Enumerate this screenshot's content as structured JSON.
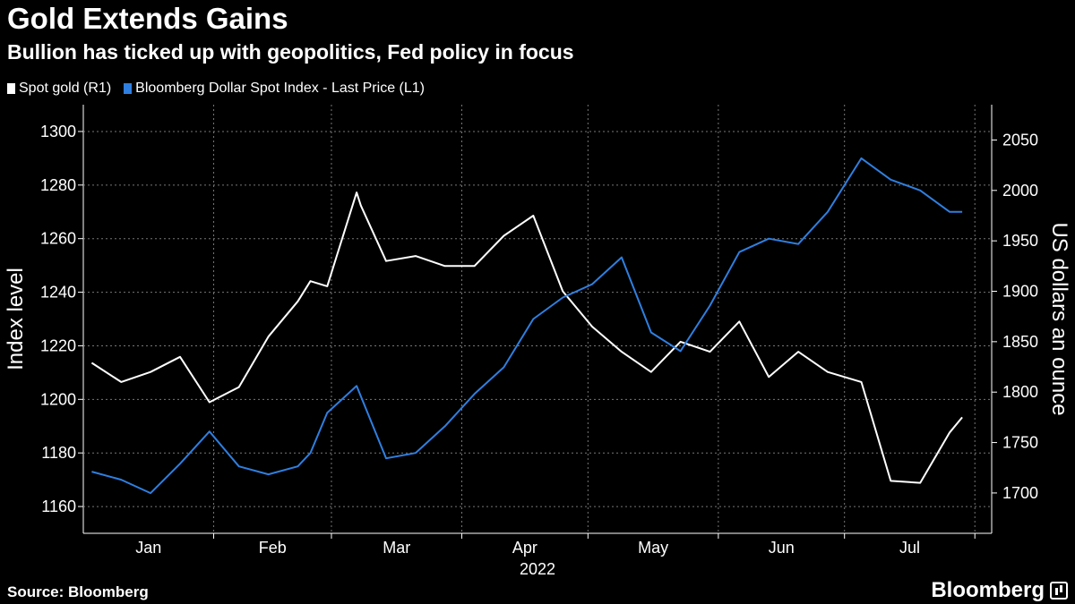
{
  "header": {
    "title": "Gold Extends Gains",
    "subtitle": "Bullion has ticked up with geopolitics, Fed policy in focus"
  },
  "footer": {
    "source": "Source: Bloomberg",
    "logo": "Bloomberg"
  },
  "colors": {
    "gold": "#ffffff",
    "dollar": "#2f7fe0",
    "grid": "#777777",
    "background": "#000000"
  },
  "chart_data": {
    "type": "line",
    "title": "Gold Extends Gains",
    "subtitle": "Bullion has ticked up with geopolitics, Fed policy in focus",
    "x_months": [
      "Jan",
      "Feb",
      "Mar",
      "Apr",
      "May",
      "Jun",
      "Jul"
    ],
    "x_year": "2022",
    "legend_position": "top-left",
    "grid": true,
    "y_left": {
      "label": "Index level",
      "range": [
        1150,
        1310
      ],
      "ticks": [
        "1160",
        "1180",
        "1200",
        "1220",
        "1240",
        "1260",
        "1280",
        "1300"
      ]
    },
    "y_right": {
      "label": "US dollars an ounce",
      "range": [
        1660,
        2085
      ],
      "ticks": [
        "1700",
        "1750",
        "1800",
        "1850",
        "1900",
        "1950",
        "2000",
        "2050"
      ]
    },
    "series": [
      {
        "name": "Spot gold (R1)",
        "axis": "right",
        "x": [
          "2022-01-03",
          "2022-01-10",
          "2022-01-17",
          "2022-01-24",
          "2022-01-31",
          "2022-02-07",
          "2022-02-14",
          "2022-02-21",
          "2022-02-24",
          "2022-02-28",
          "2022-03-07",
          "2022-03-08",
          "2022-03-14",
          "2022-03-21",
          "2022-03-28",
          "2022-04-04",
          "2022-04-11",
          "2022-04-18",
          "2022-04-25",
          "2022-05-02",
          "2022-05-09",
          "2022-05-16",
          "2022-05-23",
          "2022-05-30",
          "2022-06-06",
          "2022-06-13",
          "2022-06-20",
          "2022-06-27",
          "2022-07-05",
          "2022-07-12",
          "2022-07-19",
          "2022-07-26",
          "2022-07-29"
        ],
        "values": [
          1829,
          1810,
          1820,
          1835,
          1790,
          1805,
          1855,
          1890,
          1910,
          1905,
          1998,
          1985,
          1930,
          1935,
          1925,
          1925,
          1955,
          1975,
          1900,
          1865,
          1840,
          1820,
          1850,
          1840,
          1870,
          1815,
          1840,
          1820,
          1810,
          1712,
          1710,
          1760,
          1775
        ]
      },
      {
        "name": "Bloomberg Dollar Spot Index - Last Price (L1)",
        "axis": "left",
        "x": [
          "2022-01-03",
          "2022-01-10",
          "2022-01-17",
          "2022-01-24",
          "2022-01-31",
          "2022-02-07",
          "2022-02-14",
          "2022-02-21",
          "2022-02-24",
          "2022-02-28",
          "2022-03-07",
          "2022-03-14",
          "2022-03-21",
          "2022-03-28",
          "2022-04-04",
          "2022-04-11",
          "2022-04-18",
          "2022-04-25",
          "2022-05-02",
          "2022-05-09",
          "2022-05-16",
          "2022-05-23",
          "2022-05-30",
          "2022-06-06",
          "2022-06-13",
          "2022-06-20",
          "2022-06-27",
          "2022-07-05",
          "2022-07-12",
          "2022-07-19",
          "2022-07-26",
          "2022-07-29"
        ],
        "values": [
          1173,
          1170,
          1165,
          1176,
          1188,
          1175,
          1172,
          1175,
          1180,
          1195,
          1205,
          1178,
          1180,
          1190,
          1202,
          1212,
          1230,
          1238,
          1243,
          1253,
          1225,
          1218,
          1235,
          1255,
          1260,
          1258,
          1270,
          1290,
          1282,
          1278,
          1270,
          1270
        ]
      }
    ]
  }
}
